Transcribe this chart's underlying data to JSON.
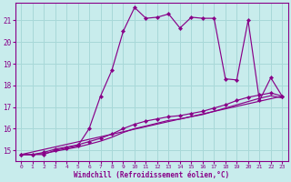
{
  "xlabel": "Windchill (Refroidissement éolien,°C)",
  "bg_color": "#c8ecec",
  "grid_color": "#a8d8d8",
  "line_color": "#880088",
  "xlim": [
    -0.5,
    23.5
  ],
  "ylim": [
    14.5,
    21.8
  ],
  "xticks": [
    0,
    1,
    2,
    3,
    4,
    5,
    6,
    7,
    8,
    9,
    10,
    11,
    12,
    13,
    14,
    15,
    16,
    17,
    18,
    19,
    20,
    21,
    22,
    23
  ],
  "yticks": [
    15,
    16,
    17,
    18,
    19,
    20,
    21
  ],
  "line1_x": [
    0,
    1,
    2,
    3,
    4,
    5,
    6,
    7,
    8,
    9,
    10,
    11,
    12,
    13,
    14,
    15,
    16,
    17,
    18,
    19,
    20,
    21,
    22,
    23
  ],
  "line1_y": [
    14.8,
    14.8,
    14.8,
    15.0,
    15.1,
    15.2,
    16.0,
    17.5,
    18.7,
    20.5,
    21.6,
    21.1,
    21.15,
    21.3,
    20.65,
    21.15,
    21.1,
    21.1,
    18.3,
    18.25,
    21.0,
    17.3,
    18.35,
    17.5
  ],
  "line2_x": [
    0,
    1,
    2,
    3,
    4,
    5,
    6,
    7,
    8,
    9,
    10,
    11,
    12,
    13,
    14,
    15,
    16,
    17,
    18,
    19,
    20,
    21,
    22,
    23
  ],
  "line2_y": [
    14.8,
    14.8,
    14.9,
    15.05,
    15.15,
    15.25,
    15.4,
    15.55,
    15.75,
    16.0,
    16.2,
    16.35,
    16.45,
    16.55,
    16.6,
    16.7,
    16.8,
    16.95,
    17.1,
    17.3,
    17.45,
    17.55,
    17.65,
    17.5
  ],
  "line3_x": [
    0,
    1,
    2,
    3,
    4,
    5,
    6,
    7,
    8,
    9,
    10,
    11,
    12,
    13,
    14,
    15,
    16,
    17,
    18,
    19,
    20,
    21,
    22,
    23
  ],
  "line3_y": [
    14.8,
    14.8,
    14.85,
    14.95,
    15.05,
    15.15,
    15.28,
    15.42,
    15.6,
    15.82,
    16.0,
    16.12,
    16.25,
    16.38,
    16.44,
    16.55,
    16.65,
    16.8,
    16.95,
    17.1,
    17.25,
    17.4,
    17.52,
    17.42
  ],
  "line4_x": [
    0,
    23
  ],
  "line4_y": [
    14.8,
    17.5
  ]
}
